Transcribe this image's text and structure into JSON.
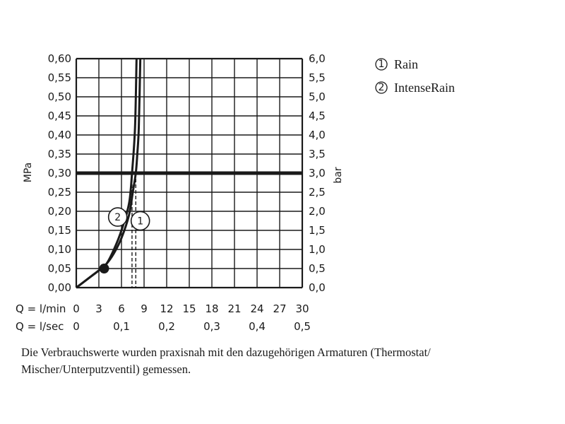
{
  "chart_data": {
    "type": "line",
    "title": "",
    "ylabel_left": "MPa",
    "ylabel_right": "bar",
    "y_left_ticks": [
      "0,00",
      "0,05",
      "0,10",
      "0,15",
      "0,20",
      "0,25",
      "0,30",
      "0,35",
      "0,40",
      "0,45",
      "0,50",
      "0,55",
      "0,60"
    ],
    "y_right_ticks": [
      "0,0",
      "0,5",
      "1,0",
      "1,5",
      "2,0",
      "2,5",
      "3,0",
      "3,5",
      "4,0",
      "4,5",
      "5,0",
      "5,5",
      "6,0"
    ],
    "ylim": [
      0,
      0.6
    ],
    "xlim": [
      0,
      30
    ],
    "x_rows": [
      {
        "label": "Q = l/min",
        "ticks": [
          {
            "x": 0,
            "text": "0"
          },
          {
            "x": 3,
            "text": "3"
          },
          {
            "x": 6,
            "text": "6"
          },
          {
            "x": 9,
            "text": "9"
          },
          {
            "x": 12,
            "text": "12"
          },
          {
            "x": 15,
            "text": "15"
          },
          {
            "x": 18,
            "text": "18"
          },
          {
            "x": 21,
            "text": "21"
          },
          {
            "x": 24,
            "text": "24"
          },
          {
            "x": 27,
            "text": "27"
          },
          {
            "x": 30,
            "text": "30"
          }
        ]
      },
      {
        "label": "Q = l/sec",
        "ticks": [
          {
            "x": 0,
            "text": "0"
          },
          {
            "x": 6,
            "text": "0,1"
          },
          {
            "x": 12,
            "text": "0,2"
          },
          {
            "x": 18,
            "text": "0,3"
          },
          {
            "x": 24,
            "text": "0,4"
          },
          {
            "x": 30,
            "text": "0,5"
          }
        ]
      }
    ],
    "grid": true,
    "reference_line": {
      "y": 0.3
    },
    "marker_point": {
      "x": 3.7,
      "y": 0.05
    },
    "series": [
      {
        "name": "Rain",
        "badge": "1",
        "points": [
          [
            0,
            0
          ],
          [
            1,
            0.015
          ],
          [
            2,
            0.03
          ],
          [
            3,
            0.045
          ],
          [
            4,
            0.062
          ],
          [
            5,
            0.09
          ],
          [
            6,
            0.13
          ],
          [
            7,
            0.19
          ],
          [
            7.5,
            0.25
          ],
          [
            7.9,
            0.3
          ],
          [
            8.1,
            0.35
          ],
          [
            8.3,
            0.42
          ],
          [
            8.5,
            0.6
          ]
        ],
        "drop_x": 7.9,
        "badge_pos": {
          "x": 8.5,
          "y": 0.175
        }
      },
      {
        "name": "IntenseRain",
        "badge": "2",
        "points": [
          [
            0,
            0
          ],
          [
            1,
            0.015
          ],
          [
            2,
            0.03
          ],
          [
            3,
            0.045
          ],
          [
            4,
            0.062
          ],
          [
            5,
            0.1
          ],
          [
            6,
            0.15
          ],
          [
            7,
            0.22
          ],
          [
            7.4,
            0.3
          ],
          [
            7.8,
            0.42
          ],
          [
            8.0,
            0.6
          ]
        ],
        "drop_x": 7.4,
        "badge_pos": {
          "x": 5.5,
          "y": 0.185
        }
      }
    ],
    "legend": [
      {
        "symbol": "1",
        "name": "Rain"
      },
      {
        "symbol": "2",
        "name": "IntenseRain"
      }
    ],
    "legend_position": "top-right"
  },
  "caption": {
    "line1": "Die Verbrauchswerte wurden praxisnah mit den dazugehörigen Armaturen (Thermostat/",
    "line2": "Mischer/Unterputzventil) gemessen."
  },
  "colors": {
    "ink": "#1a1a1a",
    "background": "#ffffff"
  }
}
